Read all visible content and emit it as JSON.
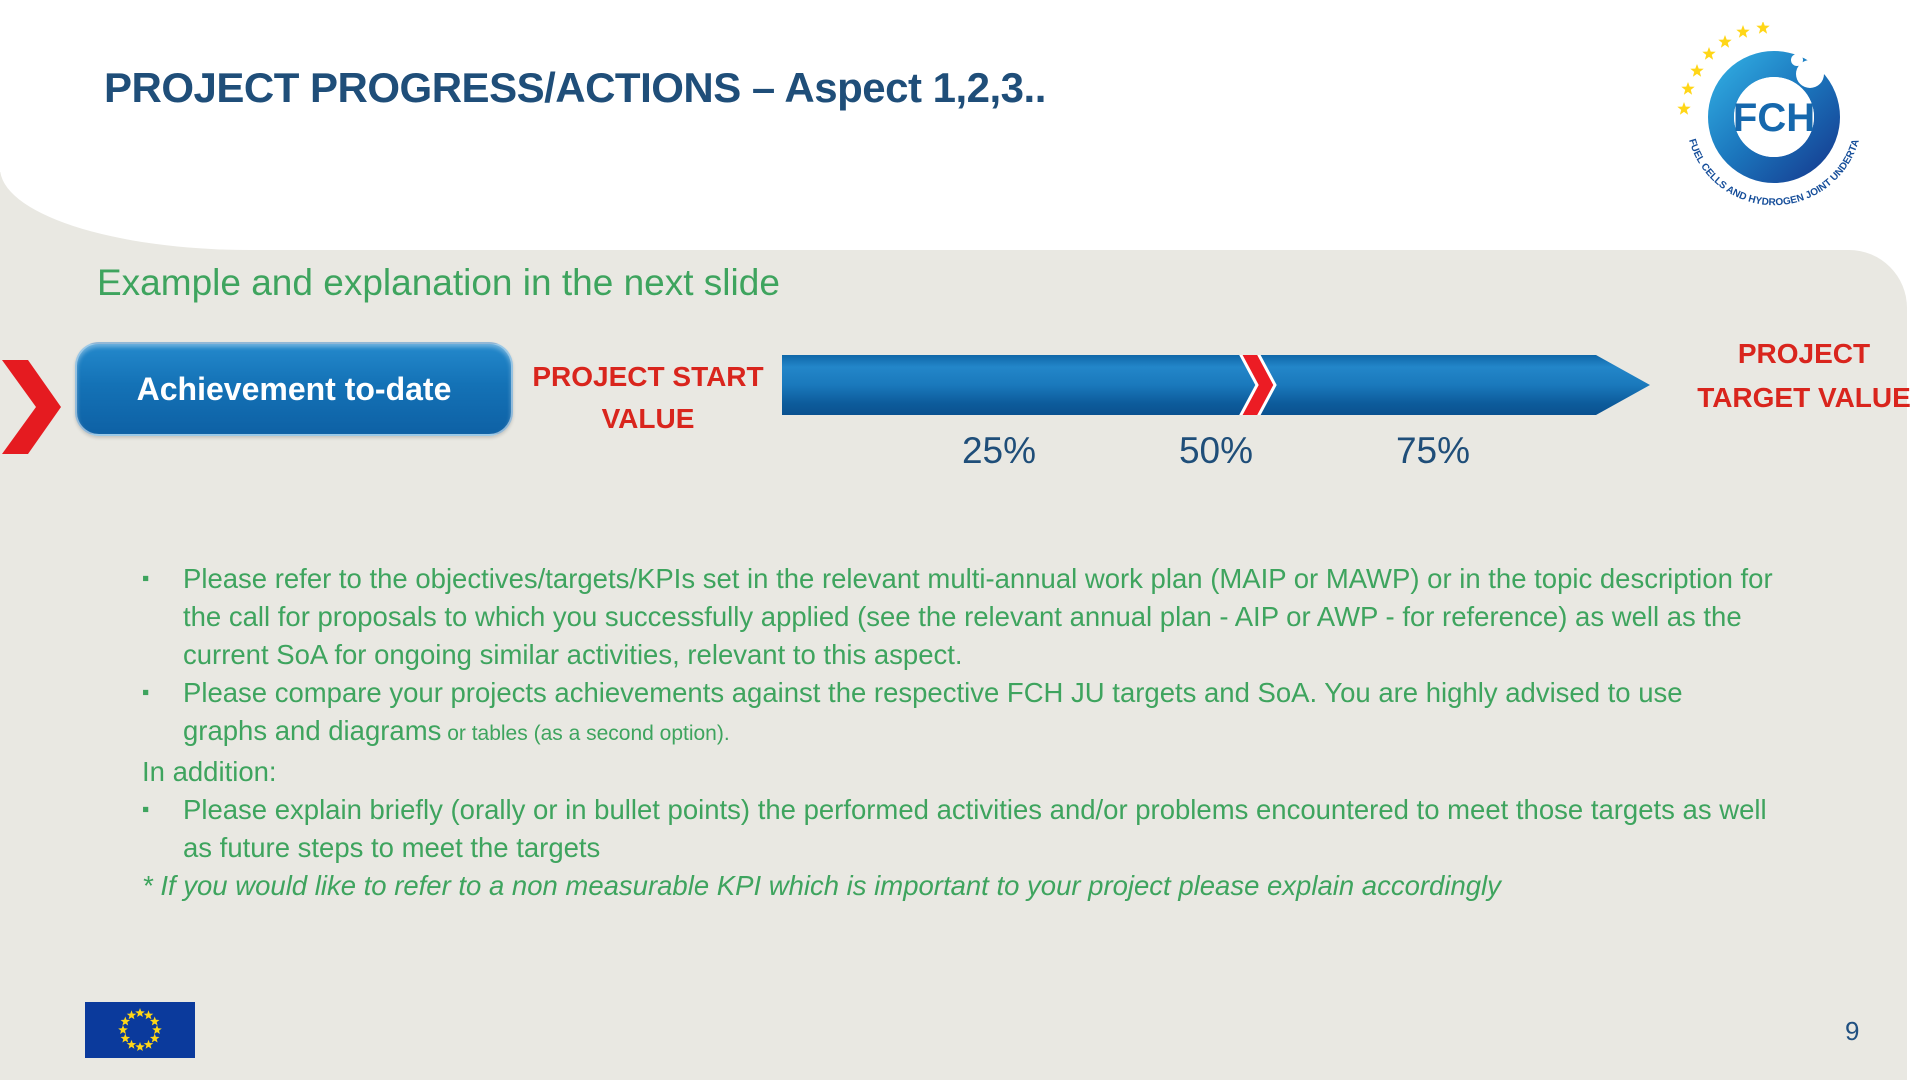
{
  "colors": {
    "title_blue": "#1F4E79",
    "text_green": "#3EA45E",
    "accent_red": "#D9251D",
    "bar_blue": "#1472B6",
    "panel_gray": "#E9E8E2",
    "eu_blue": "#003399",
    "star_yellow": "#FFD617",
    "fch_blue": "#164E9A"
  },
  "header": {
    "title": "PROJECT PROGRESS/ACTIONS – Aspect 1,2,3.."
  },
  "logo": {
    "monogram": "FCH",
    "ring_caption": "FUEL CELLS AND HYDROGEN JOINT UNDERTAKING"
  },
  "diagram": {
    "subtitle": "Example and explanation in the next slide",
    "achievement_button": "Achievement to-date",
    "start_label_line1": "PROJECT START",
    "start_label_line2": "VALUE",
    "target_label_line1": "PROJECT",
    "target_label_line2": "TARGET VALUE",
    "ticks": [
      "25%",
      "50%",
      "75%"
    ],
    "marker_position": "just past 50%"
  },
  "notes": {
    "bullet1": "Please refer to the objectives/targets/KPIs set in the relevant multi-annual work plan (MAIP or MAWP) or in the topic description for the call for proposals to which you successfully applied (see the relevant annual plan - AIP or AWP - for reference) as well as the current SoA for ongoing similar activities, relevant to this aspect.",
    "bullet2_main": "Please compare your projects achievements against the respective FCH JU targets and SoA. You are highly advised to use graphs and diagrams",
    "bullet2_small": " or tables (as a second option).",
    "in_addition": "In addition:",
    "bullet3": "Please explain briefly (orally or in bullet points) the performed activities and/or problems encountered to meet those targets as well as future steps to meet the targets",
    "footnote": "* If you would like to refer to a non measurable KPI which is important to your project please explain accordingly"
  },
  "footer": {
    "page_number": "9"
  }
}
